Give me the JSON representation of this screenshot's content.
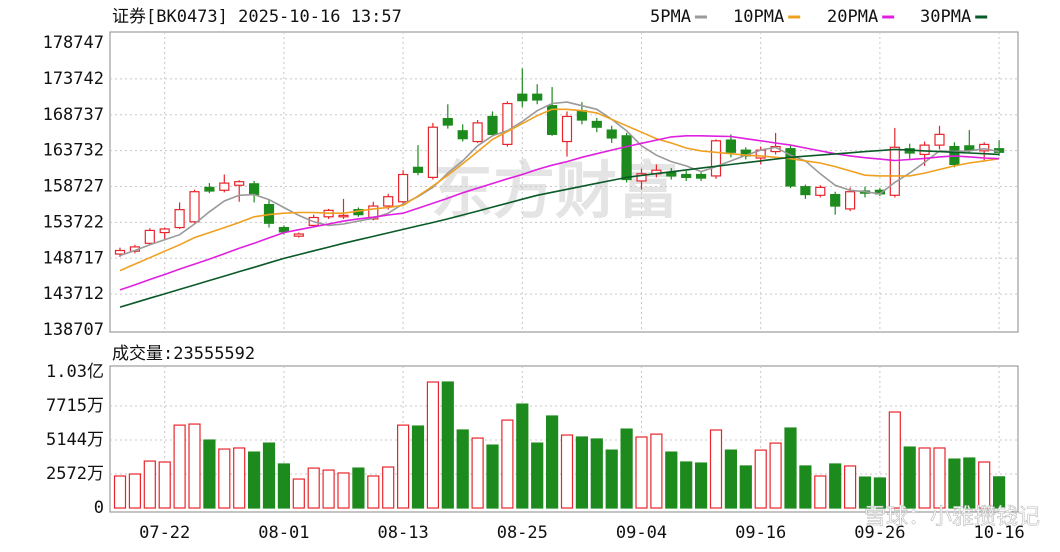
{
  "chart_data": {
    "type": "candlestick",
    "title": "证券[BK0473] 2025-10-16 13:57",
    "watermark": "东方财富",
    "watermark2": "雪球：小雅攒钱记",
    "up_color": "#e8252c",
    "down_color": "#1d8a1d",
    "grid": true,
    "categories": [
      null,
      null,
      null,
      "07-22",
      null,
      null,
      null,
      null,
      null,
      null,
      null,
      "08-01",
      null,
      null,
      null,
      null,
      null,
      null,
      null,
      "08-13",
      null,
      null,
      null,
      null,
      null,
      null,
      null,
      "08-25",
      null,
      null,
      null,
      null,
      null,
      null,
      null,
      "09-04",
      null,
      null,
      null,
      null,
      null,
      null,
      null,
      "09-16",
      null,
      null,
      null,
      null,
      null,
      null,
      null,
      "09-26",
      null,
      null,
      null,
      null,
      null,
      null,
      null,
      "10-16"
    ],
    "open": [
      149300,
      149700,
      150800,
      152300,
      153000,
      153800,
      158600,
      158200,
      158900,
      159100,
      156200,
      153000,
      151800,
      153300,
      154500,
      154500,
      155500,
      154200,
      156000,
      156600,
      161400,
      160000,
      168200,
      166500,
      165000,
      168500,
      164600,
      171600,
      171600,
      170000,
      165000,
      169300,
      167800,
      166600,
      165800,
      159500,
      160500,
      160700,
      160400,
      160400,
      160200,
      165200,
      163800,
      162700,
      163600,
      164000,
      158700,
      157500,
      157600,
      155600,
      158100,
      158200,
      157500,
      164000,
      163200,
      164500,
      164300,
      164400,
      163700,
      164000
    ],
    "high": [
      150200,
      150600,
      152900,
      153000,
      156500,
      158300,
      159200,
      160400,
      159600,
      159500,
      156800,
      153300,
      152300,
      154800,
      155600,
      157000,
      155800,
      156600,
      157700,
      161000,
      164500,
      167600,
      170200,
      167400,
      168000,
      169200,
      170600,
      175200,
      173000,
      172600,
      169200,
      170500,
      168300,
      167200,
      166200,
      161200,
      161800,
      161300,
      160900,
      160700,
      165300,
      166000,
      164200,
      164300,
      166200,
      164500,
      159000,
      158900,
      158000,
      158600,
      158700,
      158500,
      166900,
      164700,
      165000,
      167200,
      164900,
      166600,
      164900,
      165200
    ],
    "low": [
      148900,
      149400,
      150500,
      151200,
      152800,
      153500,
      157800,
      157900,
      156600,
      156500,
      153000,
      152000,
      151600,
      153000,
      154200,
      154200,
      154500,
      154000,
      155500,
      156300,
      160300,
      159700,
      166800,
      165000,
      164800,
      165800,
      164300,
      169800,
      170200,
      165800,
      162900,
      167400,
      166300,
      164800,
      159300,
      158300,
      160000,
      159700,
      159500,
      159500,
      159800,
      162800,
      162500,
      161800,
      163200,
      158500,
      157000,
      157200,
      154800,
      155300,
      157200,
      157400,
      157200,
      162600,
      161600,
      163900,
      161400,
      163400,
      162400,
      163000
    ],
    "close": [
      149800,
      150300,
      152600,
      152800,
      155500,
      158000,
      158100,
      159200,
      159400,
      157600,
      153600,
      152400,
      152100,
      154400,
      155400,
      154700,
      154800,
      156000,
      157300,
      160400,
      160700,
      167000,
      167300,
      165400,
      167600,
      166000,
      170300,
      170700,
      170800,
      166000,
      168500,
      168000,
      167000,
      165500,
      159700,
      160500,
      161000,
      160200,
      160000,
      159900,
      165100,
      163500,
      163000,
      163800,
      164300,
      158800,
      157600,
      158600,
      156000,
      158000,
      157800,
      157700,
      164200,
      163400,
      164500,
      166000,
      161800,
      163800,
      164600,
      163500
    ],
    "ylim": [
      138707,
      178747
    ],
    "yticks": [
      138707,
      143712,
      148717,
      153722,
      158727,
      163732,
      168737,
      173742,
      178747
    ],
    "series": [
      {
        "name": "5PMA",
        "color": "#9a9a9a",
        "values": [
          149100,
          149800,
          150600,
          151300,
          152000,
          153500,
          155200,
          156700,
          157500,
          157600,
          156900,
          155800,
          154700,
          153800,
          153300,
          153500,
          153900,
          154300,
          155000,
          156300,
          157300,
          158600,
          160600,
          162300,
          164400,
          165800,
          166500,
          167800,
          169300,
          170300,
          170500,
          170000,
          169500,
          168100,
          166500,
          164400,
          163100,
          162200,
          161600,
          160800,
          161500,
          162300,
          163100,
          163800,
          164200,
          163100,
          162300,
          160500,
          158900,
          158200,
          158000,
          157700,
          159300,
          160600,
          162100,
          163700,
          163600,
          163700,
          164000,
          163600
        ]
      },
      {
        "name": "10PMA",
        "color": "#f0a020",
        "values": [
          147000,
          147900,
          148800,
          149700,
          150600,
          151600,
          152300,
          153000,
          153700,
          154500,
          154800,
          155000,
          155100,
          155100,
          155000,
          155000,
          155300,
          155600,
          155800,
          156100,
          157400,
          158800,
          160300,
          161900,
          163600,
          165300,
          166400,
          167500,
          168600,
          169500,
          169500,
          169300,
          169000,
          168100,
          167200,
          166300,
          165400,
          164800,
          164100,
          163700,
          163500,
          163300,
          163100,
          163000,
          162800,
          162600,
          162300,
          162000,
          161500,
          160900,
          160300,
          160200,
          160200,
          160200,
          160600,
          161100,
          161600,
          162000,
          162300,
          162600
        ]
      },
      {
        "name": "20PMA",
        "color": "#e020e0",
        "values": [
          144300,
          145000,
          145750,
          146450,
          147200,
          147900,
          148600,
          149350,
          150100,
          150800,
          151550,
          152300,
          152700,
          153100,
          153500,
          153900,
          154200,
          154450,
          154750,
          155000,
          155700,
          156400,
          157100,
          157850,
          158500,
          159150,
          159800,
          160400,
          161100,
          161700,
          162200,
          162800,
          163300,
          163800,
          164300,
          164750,
          165200,
          165650,
          165800,
          165800,
          165750,
          165700,
          165400,
          165100,
          164800,
          164500,
          164100,
          163700,
          163300,
          163000,
          162750,
          162550,
          162350,
          162500,
          162650,
          162850,
          163000,
          162850,
          162700,
          162600
        ]
      },
      {
        "name": "30PMA",
        "color": "#0a5a28",
        "values": [
          141900,
          142520,
          143140,
          143750,
          144370,
          144990,
          145610,
          146230,
          146850,
          147460,
          148080,
          148700,
          149225,
          149750,
          150275,
          150800,
          151290,
          151770,
          152260,
          152740,
          153230,
          153710,
          154200,
          154750,
          155300,
          155850,
          156400,
          156950,
          157500,
          157920,
          158330,
          158750,
          159170,
          159580,
          160000,
          160260,
          160520,
          160780,
          161040,
          161300,
          161550,
          161800,
          162050,
          162300,
          162550,
          162800,
          162960,
          163110,
          163270,
          163430,
          163590,
          163740,
          163900,
          163800,
          163700,
          163600,
          163500,
          163400,
          163300,
          163200
        ]
      }
    ],
    "volume": {
      "type": "bar",
      "title": "成交量:",
      "values": [
        24200000,
        25700000,
        35500000,
        34800000,
        62700000,
        63500000,
        51400000,
        44600000,
        45400000,
        42300000,
        49100000,
        33300000,
        21900000,
        30200000,
        28700000,
        26500000,
        30200000,
        24200000,
        31000000,
        62700000,
        62000000,
        95300000,
        95300000,
        59000000,
        52900000,
        47600000,
        66500000,
        78600000,
        49100000,
        69600000,
        55200000,
        53700000,
        52200000,
        43800000,
        59700000,
        53700000,
        55900000,
        42300000,
        34800000,
        34000000,
        59000000,
        43800000,
        31800000,
        43800000,
        49100000,
        60500000,
        31800000,
        24200000,
        33300000,
        31800000,
        23400000,
        22700000,
        72600000,
        46100000,
        45400000,
        45400000,
        37000000,
        37800000,
        34800000,
        23555592
      ],
      "ylim": [
        0,
        102880000
      ],
      "yticks": [
        0,
        {
          "value": 25720000,
          "label": "2572万"
        },
        {
          "value": 51440000,
          "label": "5144万"
        },
        {
          "value": 77150000,
          "label": "7715万"
        },
        {
          "value": 102880000,
          "label": "1.03亿"
        }
      ]
    }
  }
}
